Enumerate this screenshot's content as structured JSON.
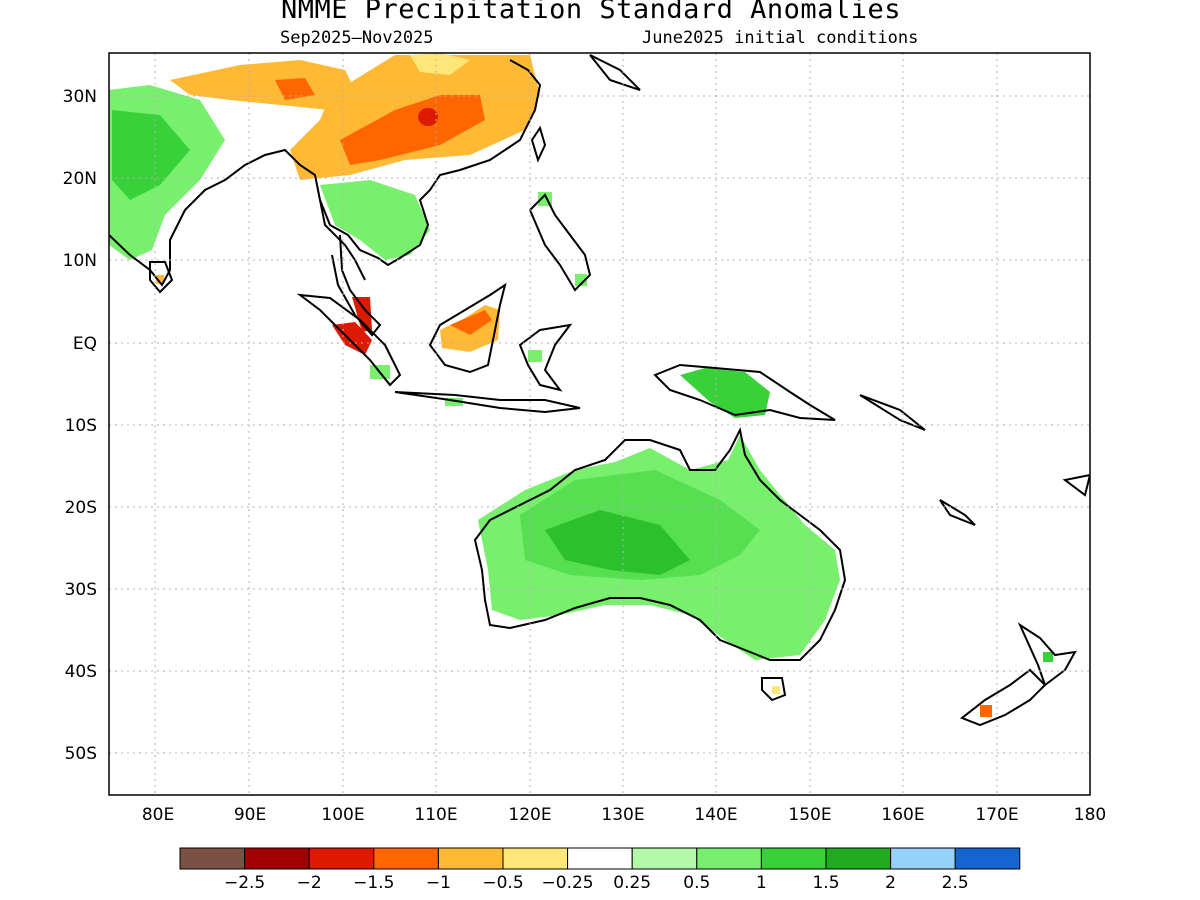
{
  "map": {
    "title": "NMME Precipitation Standard Anomalies",
    "period": "Sep2025—Nov2025",
    "initial_conditions": "June2025 initial conditions",
    "lat_labels": [
      "30N",
      "20N",
      "10N",
      "EQ",
      "10S",
      "20S",
      "30S",
      "40S",
      "50S"
    ],
    "lon_labels": [
      "80E",
      "90E",
      "100E",
      "110E",
      "120E",
      "130E",
      "140E",
      "150E",
      "160E",
      "170E",
      "180"
    ]
  },
  "legend": {
    "colors": [
      "#7a5244",
      "#a00000",
      "#dd1a00",
      "#ff6600",
      "#ffb935",
      "#ffe679",
      "#ffffff",
      "#b3f9aa",
      "#78f06e",
      "#38d13a",
      "#1fac21",
      "#96d1fa",
      "#1464d2"
    ],
    "labels": [
      "−2.5",
      "−2",
      "−1.5",
      "−1",
      "−0.5",
      "−0.25",
      "0.25",
      "0.5",
      "1",
      "1.5",
      "2",
      "2.5"
    ]
  }
}
